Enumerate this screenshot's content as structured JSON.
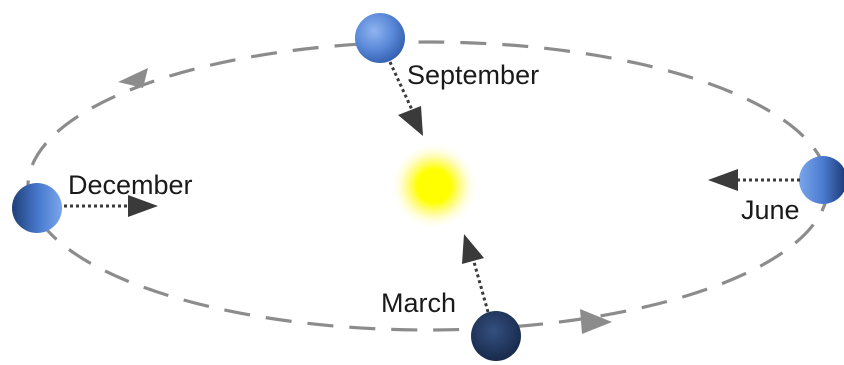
{
  "labels": {
    "september": "September",
    "december": "December",
    "june": "June",
    "march": "March"
  },
  "colors": {
    "background": "#ffffff",
    "orbit": "#8c8c8c",
    "pointer": "#3a3a3a",
    "sun": "#ffff00",
    "sun_glow": "#fffb99",
    "earth_light": "#6a97e0",
    "earth_dark": "#1e3460",
    "text": "#1a1a1a"
  },
  "icons": {
    "sun": "sun-icon",
    "earth": "earth-icon"
  }
}
